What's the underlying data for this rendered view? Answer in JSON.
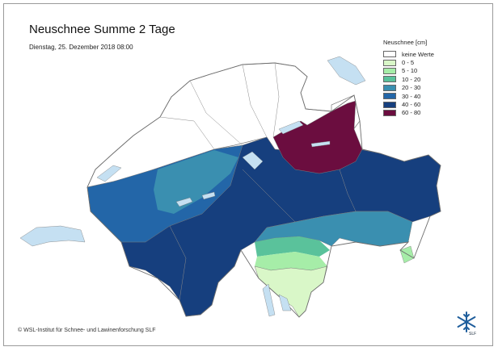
{
  "header": {
    "title": "Neuschnee Summe 2 Tage",
    "date": "Dienstag, 25. Dezember 2018 08:00"
  },
  "legend": {
    "title": "Neuschnee [cm]",
    "items": [
      {
        "label": "keine Werte",
        "color": "#ffffff"
      },
      {
        "label": "0 - 5",
        "color": "#d9f7c8"
      },
      {
        "label": "5 - 10",
        "color": "#a6eda8"
      },
      {
        "label": "10 - 20",
        "color": "#5ac29b"
      },
      {
        "label": "20 - 30",
        "color": "#3a8fb0"
      },
      {
        "label": "30 - 40",
        "color": "#2366a8"
      },
      {
        "label": "40 - 60",
        "color": "#163f7e"
      },
      {
        "label": "60 - 80",
        "color": "#6b0d3f"
      }
    ]
  },
  "footer": {
    "copyright": "© WSL-Institut für Schnee- und Lawinenforschung SLF",
    "logo_text": "SLF"
  },
  "colors": {
    "lakes": "#c5e0f2",
    "border": "#7a7a7a"
  }
}
